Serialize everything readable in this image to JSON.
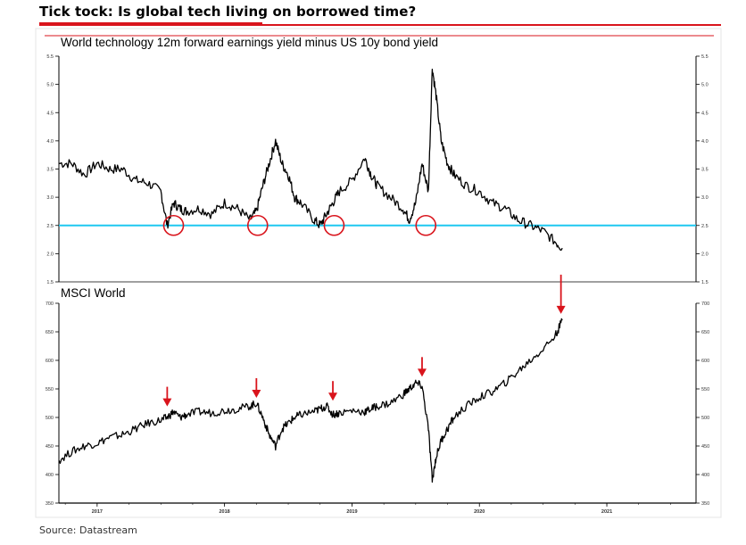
{
  "headline": "Tick tock: Is global tech living on borrowed time?",
  "source": "Source: Datastream",
  "colors": {
    "accent": "#d9141c",
    "threshold": "#1ec8f0",
    "line": "#000000"
  },
  "chart_data": [
    {
      "type": "line",
      "title": "World technology 12m forward earnings yield minus US 10y bond yield",
      "xlabel": "",
      "ylabel": "",
      "xlim": [
        2016.7,
        2021.7
      ],
      "ylim": [
        1.5,
        5.5
      ],
      "y_ticks": [
        "1.5",
        "2.0",
        "2.5",
        "3.0",
        "3.5",
        "4.0",
        "4.5",
        "5.0",
        "5.5"
      ],
      "threshold": 2.5,
      "x": [
        2016.7,
        2016.8,
        2016.9,
        2017.0,
        2017.1,
        2017.2,
        2017.3,
        2017.4,
        2017.5,
        2017.55,
        2017.6,
        2017.65,
        2017.7,
        2017.8,
        2017.9,
        2018.0,
        2018.1,
        2018.2,
        2018.25,
        2018.3,
        2018.35,
        2018.4,
        2018.45,
        2018.5,
        2018.55,
        2018.6,
        2018.7,
        2018.75,
        2018.8,
        2018.85,
        2018.9,
        2019.0,
        2019.1,
        2019.15,
        2019.2,
        2019.3,
        2019.4,
        2019.45,
        2019.5,
        2019.55,
        2019.6,
        2019.63,
        2019.66,
        2019.7,
        2019.75,
        2019.8,
        2019.9,
        2020.0,
        2020.1,
        2020.2,
        2020.3,
        2020.4,
        2020.5,
        2020.6,
        2020.65
      ],
      "values": [
        3.6,
        3.6,
        3.4,
        3.6,
        3.5,
        3.5,
        3.3,
        3.25,
        3.1,
        2.5,
        2.9,
        2.8,
        2.75,
        2.8,
        2.7,
        2.9,
        2.8,
        2.6,
        2.75,
        3.2,
        3.6,
        4.0,
        3.6,
        3.4,
        3.0,
        2.9,
        2.6,
        2.5,
        2.7,
        2.9,
        3.1,
        3.3,
        3.7,
        3.4,
        3.2,
        3.0,
        2.8,
        2.6,
        2.9,
        3.6,
        3.1,
        5.3,
        4.8,
        4.0,
        3.6,
        3.4,
        3.2,
        3.1,
        2.9,
        2.8,
        2.6,
        2.5,
        2.4,
        2.2,
        2.1
      ],
      "annotations": [
        {
          "label": "circle",
          "x": 2017.6,
          "y": 2.5
        },
        {
          "label": "circle",
          "x": 2018.26,
          "y": 2.5
        },
        {
          "label": "circle",
          "x": 2018.86,
          "y": 2.5
        },
        {
          "label": "circle",
          "x": 2019.58,
          "y": 2.5
        }
      ]
    },
    {
      "type": "line",
      "title": "MSCI World",
      "xlabel": "",
      "ylabel": "",
      "xlim": [
        2016.7,
        2021.7
      ],
      "ylim": [
        350,
        700
      ],
      "y_ticks": [
        "350",
        "400",
        "450",
        "500",
        "550",
        "600",
        "650",
        "700"
      ],
      "x_ticks": [
        "2017",
        "2018",
        "2019",
        "2020",
        "2021"
      ],
      "x": [
        2016.7,
        2016.8,
        2016.9,
        2017.0,
        2017.1,
        2017.2,
        2017.3,
        2017.4,
        2017.5,
        2017.55,
        2017.6,
        2017.65,
        2017.7,
        2017.8,
        2017.9,
        2018.0,
        2018.1,
        2018.2,
        2018.25,
        2018.3,
        2018.35,
        2018.4,
        2018.45,
        2018.5,
        2018.55,
        2018.6,
        2018.7,
        2018.75,
        2018.8,
        2018.85,
        2018.9,
        2019.0,
        2019.1,
        2019.15,
        2019.2,
        2019.3,
        2019.4,
        2019.45,
        2019.5,
        2019.55,
        2019.6,
        2019.63,
        2019.66,
        2019.7,
        2019.75,
        2019.8,
        2019.9,
        2020.0,
        2020.1,
        2020.2,
        2020.3,
        2020.4,
        2020.5,
        2020.6,
        2020.65
      ],
      "values": [
        425,
        440,
        450,
        455,
        465,
        470,
        480,
        490,
        495,
        500,
        510,
        500,
        505,
        510,
        508,
        512,
        515,
        520,
        525,
        500,
        470,
        450,
        480,
        490,
        500,
        505,
        510,
        515,
        520,
        505,
        508,
        512,
        510,
        515,
        520,
        525,
        540,
        550,
        560,
        555,
        480,
        390,
        430,
        460,
        480,
        500,
        520,
        535,
        545,
        560,
        580,
        600,
        620,
        645,
        670
      ],
      "annotations": [
        {
          "label": "arrow",
          "x": 2017.55,
          "y": 510
        },
        {
          "label": "arrow",
          "x": 2018.25,
          "y": 525
        },
        {
          "label": "arrow",
          "x": 2018.85,
          "y": 520
        },
        {
          "label": "arrow",
          "x": 2019.55,
          "y": 562
        },
        {
          "label": "arrow",
          "x": 2020.64,
          "y": 672
        }
      ]
    }
  ]
}
